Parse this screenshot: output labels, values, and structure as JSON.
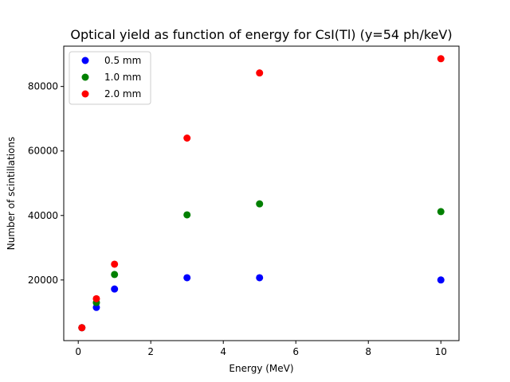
{
  "chart_data": {
    "type": "scatter",
    "title": "Optical yield as function of energy for CsI(Tl) (y=54 ph/keV)",
    "xlabel": "Energy (MeV)",
    "ylabel": "Number of scintillations",
    "xlim": [
      -0.4,
      10.5
    ],
    "ylim": [
      1200,
      92500
    ],
    "xticks": [
      0,
      2,
      4,
      6,
      8,
      10
    ],
    "xtick_labels": [
      "0",
      "2",
      "4",
      "6",
      "8",
      "10"
    ],
    "yticks": [
      20000,
      40000,
      60000,
      80000
    ],
    "ytick_labels": [
      "20000",
      "40000",
      "60000",
      "80000"
    ],
    "grid": false,
    "legend_position": "top-left",
    "series": [
      {
        "name": "0.5 mm",
        "color": "#0000ff",
        "x": [
          0.1,
          0.5,
          1.0,
          3.0,
          5.0,
          10.0
        ],
        "y": [
          5200,
          11500,
          17200,
          20700,
          20700,
          20000
        ]
      },
      {
        "name": "1.0 mm",
        "color": "#008000",
        "x": [
          0.1,
          0.5,
          1.0,
          3.0,
          5.0,
          10.0
        ],
        "y": [
          5200,
          13000,
          21700,
          40200,
          43600,
          41200
        ]
      },
      {
        "name": "2.0 mm",
        "color": "#ff0000",
        "x": [
          0.1,
          0.5,
          1.0,
          3.0,
          5.0,
          10.0
        ],
        "y": [
          5200,
          14200,
          24900,
          64000,
          84200,
          88600
        ]
      }
    ]
  }
}
